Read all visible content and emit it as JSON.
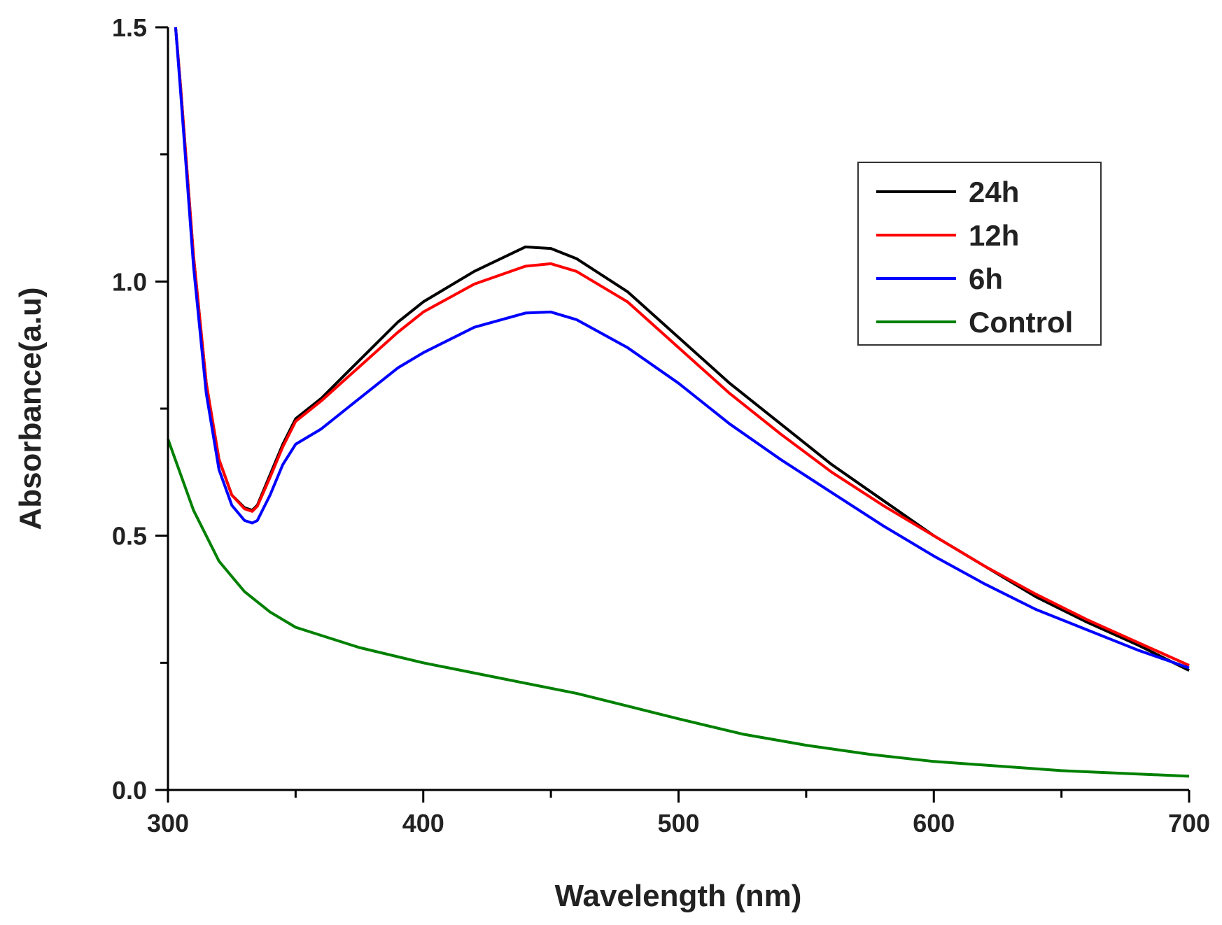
{
  "chart_data": {
    "type": "line",
    "xlabel": "Wavelength (nm)",
    "ylabel": "Absorbance(a.u)",
    "xlim": [
      300,
      700
    ],
    "xticks": [
      300,
      400,
      500,
      600,
      700
    ],
    "xminorticks": [
      350,
      450,
      550,
      650
    ],
    "ylim": [
      0,
      1.5
    ],
    "yticks": [
      {
        "value": 0,
        "label": "0.0"
      },
      {
        "value": 0.5,
        "label": "0.5"
      },
      {
        "value": 1,
        "label": "1.0"
      },
      {
        "value": 1.5,
        "label": "1.5"
      }
    ],
    "yminorticks": [
      0.25,
      0.75,
      1.25
    ],
    "legend": "upper right",
    "series": [
      {
        "name": "24h",
        "color": "#000000",
        "x": [
          303,
          305,
          310,
          315,
          320,
          325,
          330,
          333,
          335,
          340,
          345,
          350,
          360,
          370,
          380,
          390,
          400,
          420,
          440,
          450,
          460,
          480,
          500,
          520,
          540,
          560,
          580,
          600,
          620,
          640,
          660,
          680,
          700
        ],
        "values": [
          1.5,
          1.38,
          1.05,
          0.8,
          0.65,
          0.58,
          0.555,
          0.55,
          0.56,
          0.62,
          0.68,
          0.73,
          0.77,
          0.82,
          0.87,
          0.92,
          0.96,
          1.02,
          1.068,
          1.065,
          1.045,
          0.98,
          0.89,
          0.8,
          0.72,
          0.64,
          0.57,
          0.5,
          0.44,
          0.38,
          0.33,
          0.285,
          0.235
        ]
      },
      {
        "name": "12h",
        "color": "#ff0000",
        "x": [
          303,
          305,
          310,
          315,
          320,
          325,
          330,
          333,
          335,
          340,
          345,
          350,
          360,
          370,
          380,
          390,
          400,
          420,
          440,
          450,
          460,
          480,
          500,
          520,
          540,
          560,
          580,
          600,
          620,
          640,
          660,
          680,
          700
        ],
        "values": [
          1.5,
          1.38,
          1.05,
          0.8,
          0.65,
          0.58,
          0.553,
          0.548,
          0.558,
          0.615,
          0.675,
          0.725,
          0.765,
          0.81,
          0.855,
          0.9,
          0.94,
          0.995,
          1.03,
          1.035,
          1.02,
          0.96,
          0.87,
          0.78,
          0.7,
          0.625,
          0.56,
          0.5,
          0.44,
          0.385,
          0.335,
          0.29,
          0.245
        ]
      },
      {
        "name": "6h",
        "color": "#0000ff",
        "x": [
          303,
          305,
          310,
          315,
          320,
          325,
          330,
          333,
          335,
          340,
          345,
          350,
          360,
          370,
          380,
          390,
          400,
          420,
          440,
          450,
          460,
          480,
          500,
          520,
          540,
          560,
          580,
          600,
          620,
          640,
          660,
          680,
          700
        ],
        "values": [
          1.5,
          1.37,
          1.03,
          0.78,
          0.63,
          0.56,
          0.53,
          0.525,
          0.53,
          0.58,
          0.64,
          0.68,
          0.71,
          0.75,
          0.79,
          0.83,
          0.86,
          0.91,
          0.938,
          0.94,
          0.925,
          0.87,
          0.8,
          0.72,
          0.65,
          0.585,
          0.52,
          0.46,
          0.405,
          0.355,
          0.315,
          0.275,
          0.24
        ]
      },
      {
        "name": "Control",
        "color": "#008000",
        "x": [
          300,
          310,
          320,
          330,
          340,
          350,
          375,
          400,
          425,
          440,
          460,
          480,
          500,
          525,
          550,
          575,
          600,
          650,
          700
        ],
        "values": [
          0.69,
          0.55,
          0.45,
          0.39,
          0.35,
          0.32,
          0.28,
          0.25,
          0.225,
          0.21,
          0.19,
          0.165,
          0.14,
          0.11,
          0.088,
          0.07,
          0.056,
          0.038,
          0.027
        ]
      }
    ]
  }
}
